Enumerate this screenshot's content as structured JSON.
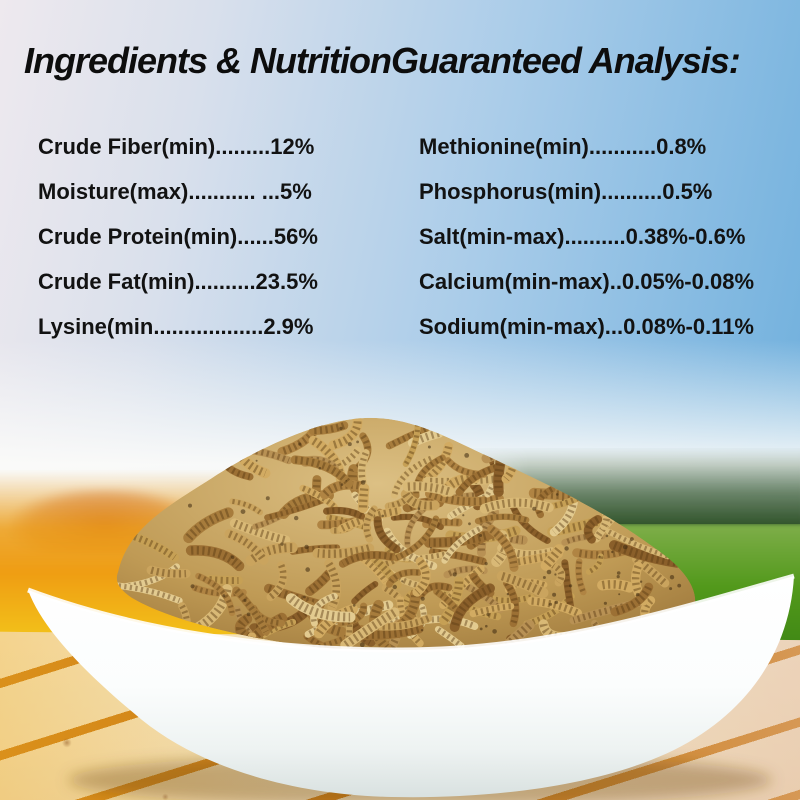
{
  "title": "Ingredients & NutritionGuaranteed Analysis:",
  "analysis": {
    "left": [
      "Crude Fiber(min).........12%",
      "Moisture(max)........... ...5%",
      "Crude Protein(min)......56%",
      "Crude Fat(min)..........23.5%",
      "Lysine(min..................2.9%"
    ],
    "right": [
      "Methionine(min)...........0.8%",
      "Phosphorus(min)..........0.5%",
      "Salt(min-max)..........0.38%-0.6%",
      "Calcium(min-max)..0.05%-0.08%",
      "Sodium(min-max)...0.08%-0.11%"
    ]
  },
  "scene": {
    "subject": "Dried mealworms piled high in a white ceramic bowl on a wooden plank table, with an orange field and red hill to the left, green hills and grass to the right, under a pink-to-blue sky",
    "palette": {
      "sky_blue": "#66abdb",
      "sky_pink_white": "#eee9ee",
      "field_orange": "#ef9d13",
      "field_yellow": "#f3c31a",
      "hill_red": "#c6623a",
      "hills_dark_green": "#2c4f25",
      "grass_green": "#52991b",
      "wood_cream": "#f2e3c4",
      "wood_gap_orange": "#cc7d15",
      "mealworm_tan": "#c49a55",
      "bowl_white": "#ffffff",
      "text_black": "#0d0d0d"
    }
  }
}
